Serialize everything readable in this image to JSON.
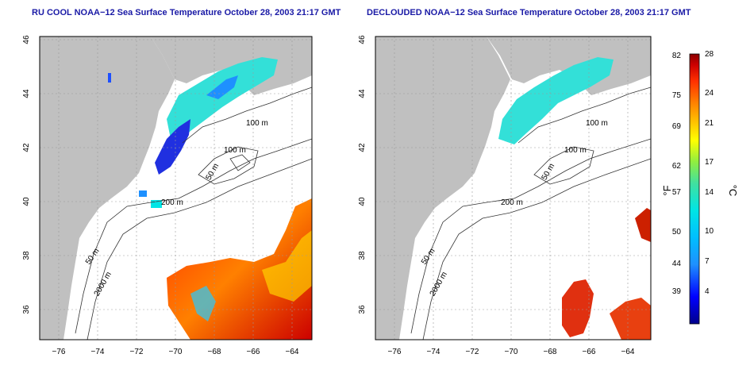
{
  "panels": [
    {
      "id": "left",
      "title": "RU COOL NOAA−12 Sea Surface Temperature October 28, 2003 21:17 GMT"
    },
    {
      "id": "right",
      "title": "DECLOUDED NOAA−12 Sea Surface Temperature October 28, 2003 21:17 GMT"
    }
  ],
  "map": {
    "x_ticks": [
      "−76",
      "−74",
      "−72",
      "−70",
      "−68",
      "−66",
      "−64"
    ],
    "y_ticks": [
      "36",
      "38",
      "40",
      "42",
      "44",
      "46"
    ],
    "lon_range": [
      -77,
      -63
    ],
    "lat_range": [
      35,
      46
    ],
    "land_color": "#c0c0c0",
    "ocean_color": "#ffffff",
    "grid": "dotted"
  },
  "bathymetry_labels": [
    {
      "text": "100 m"
    },
    {
      "text": "100 m"
    },
    {
      "text": "50 m"
    },
    {
      "text": "200 m"
    },
    {
      "text": "50 m"
    },
    {
      "text": "2000 m"
    }
  ],
  "colorbar": {
    "f_ticks": [
      "82",
      "75",
      "69",
      "62",
      "57",
      "50",
      "44",
      "39"
    ],
    "c_ticks": [
      "28",
      "24",
      "21",
      "17",
      "14",
      "10",
      "7",
      "4"
    ],
    "f_label": "°F",
    "c_label": "°C",
    "range_c": [
      0,
      28
    ],
    "colors": [
      "#00008b",
      "#0000ff",
      "#1e90ff",
      "#00bfff",
      "#00e5e5",
      "#40e0a0",
      "#90ee40",
      "#ffff00",
      "#ffc000",
      "#ff8000",
      "#ff3000",
      "#cc0000",
      "#8b0000"
    ]
  }
}
